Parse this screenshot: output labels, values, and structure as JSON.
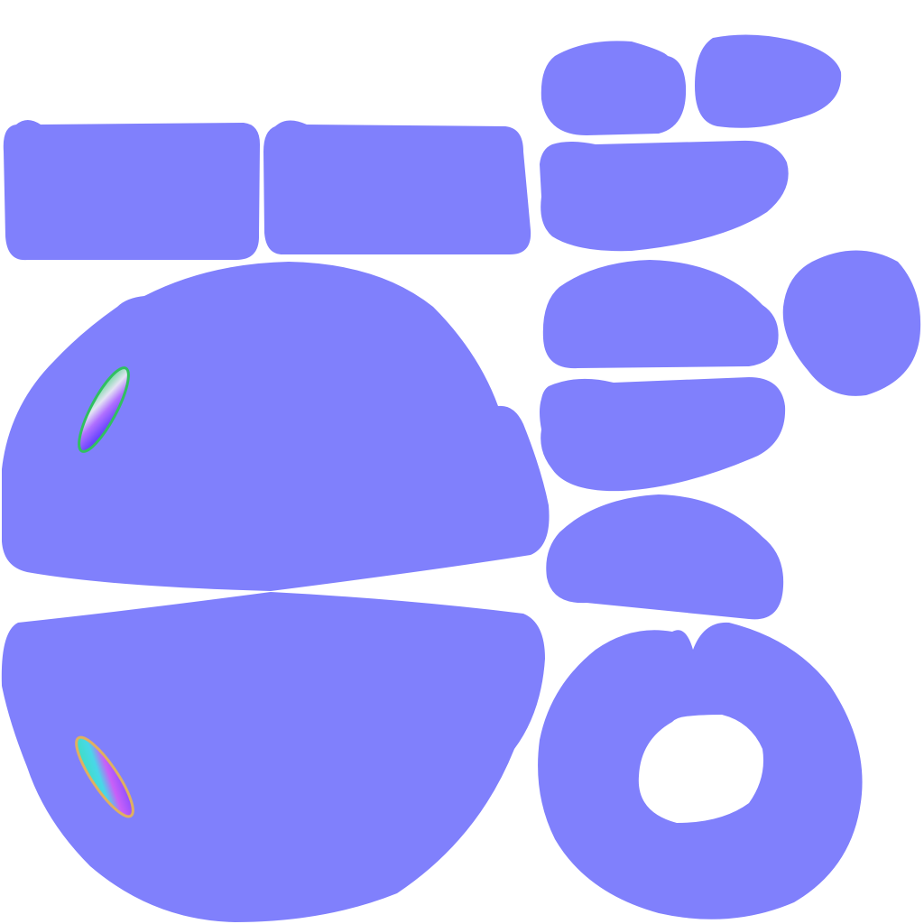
{
  "texture": {
    "background_color": "#ffffff",
    "island_color": "#8080fc",
    "kind": "normal-map-uv-layout",
    "island_count": 14,
    "detail_patch_count": 2,
    "detail_gradient_colors": [
      "#22c860",
      "#40e0d0",
      "#e0e0f0",
      "#c060ff",
      "#6040ff",
      "#ff4080"
    ]
  }
}
